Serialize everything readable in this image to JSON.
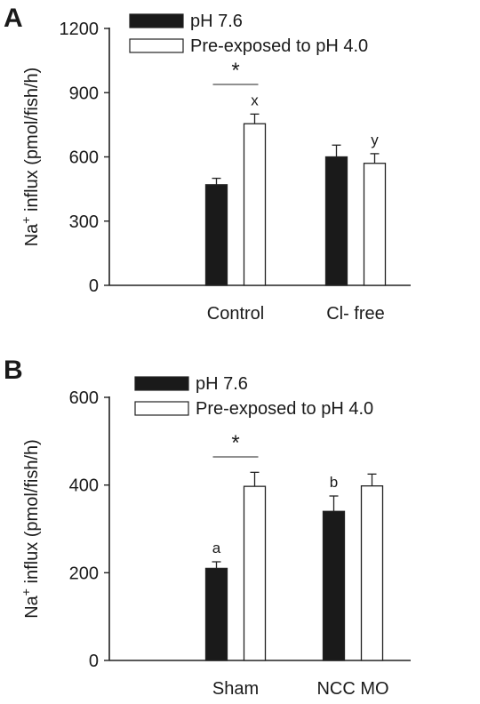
{
  "chart_data": [
    {
      "panel": "A",
      "type": "bar",
      "ylabel_main": "Na",
      "ylabel_sup": "+",
      "ylabel_rest": " influx (pmol/fish/h)",
      "ylim": [
        0,
        1200
      ],
      "yticks": [
        0,
        300,
        600,
        900,
        1200
      ],
      "categories": [
        "Control",
        "Cl- free"
      ],
      "series": [
        {
          "name": "pH 7.6",
          "fill": "#1a1a1a",
          "values": [
            470,
            600
          ],
          "errors": [
            30,
            55
          ]
        },
        {
          "name": "Pre-exposed to pH 4.0",
          "fill": "#ffffff",
          "values": [
            755,
            570
          ],
          "errors": [
            45,
            45
          ]
        }
      ],
      "letters": [
        {
          "category": 0,
          "series": 1,
          "text": "x"
        },
        {
          "category": 1,
          "series": 1,
          "text": "y"
        }
      ],
      "significance": {
        "category": 0,
        "text": "*"
      },
      "legend": "top-left"
    },
    {
      "panel": "B",
      "type": "bar",
      "ylabel_main": "Na",
      "ylabel_sup": "+",
      "ylabel_rest": " influx (pmol/fish/h)",
      "ylim": [
        0,
        600
      ],
      "yticks": [
        0,
        200,
        400,
        600
      ],
      "categories": [
        "Sham",
        "NCC MO"
      ],
      "series": [
        {
          "name": "pH 7.6",
          "fill": "#1a1a1a",
          "values": [
            210,
            340
          ],
          "errors": [
            15,
            35
          ]
        },
        {
          "name": "Pre-exposed to pH 4.0",
          "fill": "#ffffff",
          "values": [
            397,
            398
          ],
          "errors": [
            32,
            27
          ]
        }
      ],
      "letters": [
        {
          "category": 0,
          "series": 0,
          "text": "a"
        },
        {
          "category": 1,
          "series": 0,
          "text": "b"
        }
      ],
      "significance": {
        "category": 0,
        "text": "*"
      },
      "legend": "top-left"
    }
  ]
}
